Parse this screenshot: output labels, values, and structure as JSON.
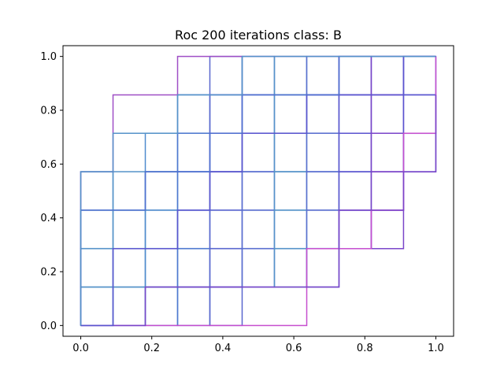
{
  "chart_data": {
    "type": "line",
    "title": "Roc 200 iterations class: B",
    "xlabel": "",
    "ylabel": "",
    "xlim": [
      -0.05,
      1.05
    ],
    "ylim": [
      -0.04,
      1.04
    ],
    "grid": false,
    "legend": "none",
    "x_ticks": [
      0.0,
      0.2,
      0.4,
      0.6,
      0.8,
      1.0
    ],
    "y_ticks": [
      0.0,
      0.2,
      0.4,
      0.6,
      0.8,
      1.0
    ],
    "x_tick_labels": [
      "0.0",
      "0.2",
      "0.4",
      "0.6",
      "0.8",
      "1.0"
    ],
    "y_tick_labels": [
      "0.0",
      "0.2",
      "0.4",
      "0.6",
      "0.8",
      "1.0"
    ],
    "step_x": 0.0909,
    "step_y": 0.1429,
    "colors": [
      "#9f4fc6",
      "#7a45c9",
      "#5a55cf",
      "#4f6fd0",
      "#5593c9",
      "#c64fcf"
    ],
    "series": [
      {
        "color": "#9f4fc6",
        "x": [
          0,
          0,
          0.0909,
          0.0909,
          0.0909,
          0.2727,
          0.2727,
          0.2727,
          0.3636,
          0.4545,
          0.5455,
          0.6364,
          0.7273,
          0.8182,
          0.9091,
          1.0
        ],
        "y": [
          0,
          0.5714,
          0.5714,
          0.7143,
          0.8571,
          0.8571,
          0.8571,
          1.0,
          1.0,
          1.0,
          1.0,
          1.0,
          1.0,
          1.0,
          1.0,
          1.0
        ]
      },
      {
        "color": "#c64fcf",
        "x": [
          0,
          0.0909,
          0.1818,
          0.2727,
          0.3636,
          0.4545,
          0.5455,
          0.6364,
          0.6364,
          0.7273,
          0.8182,
          0.8182,
          0.8182,
          0.9091,
          0.9091,
          1.0,
          1.0
        ],
        "y": [
          0,
          0,
          0,
          0,
          0,
          0,
          0,
          0,
          0.2857,
          0.2857,
          0.2857,
          0.4286,
          0.4286,
          0.4286,
          0.7143,
          0.7143,
          1.0
        ]
      },
      {
        "color": "#7a45c9",
        "x": [
          0,
          0.0909,
          0.1818,
          0.1818,
          0.2727,
          0.3636,
          0.4545,
          0.5455,
          0.6364,
          0.7273,
          0.7273,
          0.8182,
          0.9091,
          0.9091,
          1.0,
          1.0
        ],
        "y": [
          0,
          0,
          0,
          0.1429,
          0.1429,
          0.1429,
          0.1429,
          0.1429,
          0.1429,
          0.1429,
          0.4286,
          0.4286,
          0.4286,
          0.5714,
          0.5714,
          0.8571
        ]
      },
      {
        "color": "#5a55cf",
        "x": [
          0,
          0.0909,
          0.0909,
          0.2727,
          0.2727,
          0.3636,
          0.3636,
          0.4545,
          0.4545,
          0.6364,
          0.6364,
          0.9091,
          0.9091,
          1.0
        ],
        "y": [
          0,
          0,
          0.2857,
          0.2857,
          0.4286,
          0.4286,
          0.5714,
          0.5714,
          0.7143,
          0.7143,
          0.8571,
          0.8571,
          1.0,
          1.0
        ]
      },
      {
        "color": "#4f6fd0",
        "x": [
          0,
          0,
          0.0909,
          0.1818,
          0.1818,
          0.2727,
          0.3636,
          0.3636,
          0.4545,
          0.4545,
          0.5455,
          0.5455,
          0.7273,
          0.7273,
          0.8182,
          0.8182,
          1.0
        ],
        "y": [
          0,
          0.4286,
          0.4286,
          0.4286,
          0.5714,
          0.5714,
          0.5714,
          0.7143,
          0.7143,
          0.8571,
          0.8571,
          0.8571,
          0.8571,
          1.0,
          1.0,
          1.0,
          1.0
        ]
      },
      {
        "color": "#5593c9",
        "x": [
          0,
          0,
          0.0909,
          0.0909,
          0.2727,
          0.2727,
          0.4545,
          0.4545,
          0.6364,
          0.6364,
          0.8182,
          0.8182,
          1.0
        ],
        "y": [
          0,
          0.5714,
          0.5714,
          0.7143,
          0.7143,
          0.8571,
          0.8571,
          1.0,
          1.0,
          1.0,
          1.0,
          1.0,
          1.0
        ]
      }
    ]
  }
}
